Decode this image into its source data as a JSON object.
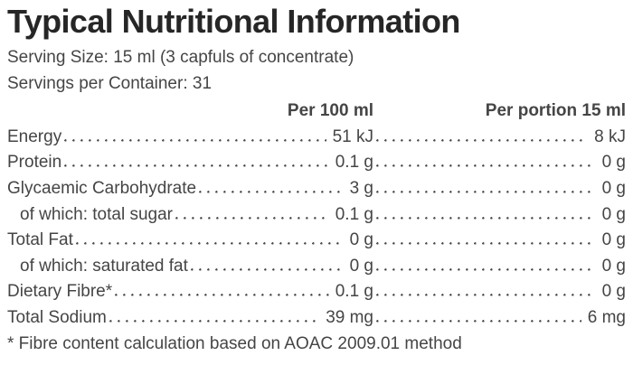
{
  "page": {
    "title": "Typical Nutritional Information",
    "serving_size_line": "Serving Size: 15 ml (3 capfuls of concentrate)",
    "servings_per_container_line": "Servings per Container: 31",
    "footnote": "* Fibre content calculation based on AOAC 2009.01 method"
  },
  "table": {
    "column_headers": [
      "Per 100 ml",
      "Per portion 15 ml"
    ],
    "rows": [
      {
        "label": "Energy",
        "per_100ml": "51 kJ",
        "per_portion_15ml": "8 kJ"
      },
      {
        "label": "Protein",
        "per_100ml": "0.1 g",
        "per_portion_15ml": "0 g"
      },
      {
        "label": "Glycaemic Carbohydrate",
        "per_100ml": "3 g",
        "per_portion_15ml": "0 g"
      },
      {
        "label": "of which: total sugar",
        "per_100ml": "0.1 g",
        "per_portion_15ml": "0 g"
      },
      {
        "label": "Total Fat",
        "per_100ml": "0 g",
        "per_portion_15ml": "0 g"
      },
      {
        "label": "of which: saturated fat",
        "per_100ml": "0 g",
        "per_portion_15ml": "0 g"
      },
      {
        "label": "Dietary Fibre*",
        "per_100ml": "0.1 g",
        "per_portion_15ml": "0 g"
      },
      {
        "label": "Total Sodium",
        "per_100ml": "39 mg",
        "per_portion_15ml": "6 mg"
      }
    ]
  },
  "colors": {
    "background": "#ffffff",
    "body_text": "#454545",
    "title_text": "#262626",
    "leader_dots": "#4a4a4a"
  }
}
